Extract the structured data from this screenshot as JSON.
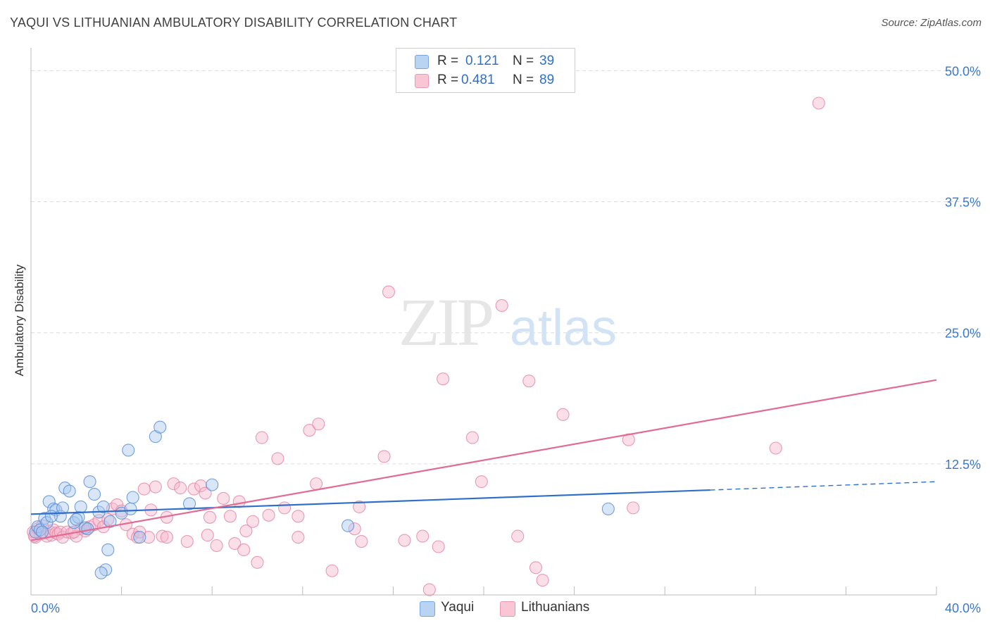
{
  "title": "YAQUI VS LITHUANIAN AMBULATORY DISABILITY CORRELATION CHART",
  "source": "Source: ZipAtlas.com",
  "watermark": {
    "zip": "ZIP",
    "atlas": "atlas"
  },
  "legend": {
    "r_label": "R =",
    "n_label": "N =",
    "yaqui": {
      "r": "0.121",
      "n": "39"
    },
    "lithuanians": {
      "r": "0.481",
      "n": "89"
    }
  },
  "colors": {
    "yaqui_fill": "#a9c8f0",
    "yaqui_stroke": "#5b8fd6",
    "yaqui_line": "#2f6fcc",
    "lith_fill": "#f7b8cc",
    "lith_stroke": "#e58aa8",
    "lith_line": "#e26b95",
    "tick_label": "#3b78c8",
    "grid": "#dcdcdc"
  },
  "chart_data": {
    "type": "scatter",
    "title": "YAQUI VS LITHUANIAN AMBULATORY DISABILITY CORRELATION CHART",
    "xlabel": "",
    "ylabel": "Ambulatory Disability",
    "xlim": [
      0,
      40
    ],
    "ylim": [
      0,
      51.5
    ],
    "x_tick_labels": [
      "0.0%",
      "40.0%"
    ],
    "y_ticks": [
      12.5,
      25.0,
      37.5,
      50.0
    ],
    "y_tick_labels": [
      "12.5%",
      "25.0%",
      "37.5%",
      "50.0%"
    ],
    "grid": true,
    "series": [
      {
        "name": "Yaqui",
        "trend": {
          "x0": 0,
          "y0": 7.7,
          "x1": 30,
          "y1": 10.0,
          "dashed_to": 40,
          "y_dashed_end": 10.8
        },
        "points": [
          [
            0.2,
            6.0
          ],
          [
            0.3,
            6.5
          ],
          [
            0.4,
            6.2
          ],
          [
            0.6,
            7.3
          ],
          [
            0.7,
            6.9
          ],
          [
            0.8,
            8.9
          ],
          [
            1.0,
            8.2
          ],
          [
            1.1,
            8.1
          ],
          [
            1.3,
            7.5
          ],
          [
            1.5,
            10.2
          ],
          [
            1.7,
            9.9
          ],
          [
            1.9,
            6.9
          ],
          [
            2.1,
            7.4
          ],
          [
            2.2,
            8.4
          ],
          [
            2.4,
            6.4
          ],
          [
            2.6,
            10.8
          ],
          [
            2.8,
            9.6
          ],
          [
            3.0,
            7.9
          ],
          [
            3.2,
            8.4
          ],
          [
            3.4,
            4.3
          ],
          [
            3.5,
            7.0
          ],
          [
            4.0,
            7.8
          ],
          [
            4.3,
            13.8
          ],
          [
            4.5,
            9.3
          ],
          [
            4.8,
            5.5
          ],
          [
            5.5,
            15.1
          ],
          [
            5.7,
            16.0
          ],
          [
            7.0,
            8.7
          ],
          [
            8.0,
            10.5
          ],
          [
            14.0,
            6.6
          ],
          [
            25.5,
            8.2
          ],
          [
            0.5,
            6.0
          ],
          [
            1.4,
            8.3
          ],
          [
            2.0,
            7.2
          ],
          [
            3.3,
            2.4
          ],
          [
            3.1,
            2.1
          ],
          [
            2.5,
            6.3
          ],
          [
            0.9,
            7.5
          ],
          [
            4.4,
            8.2
          ]
        ]
      },
      {
        "name": "Lithuanians",
        "trend": {
          "x0": 0,
          "y0": 5.2,
          "x1": 40,
          "y1": 20.5
        },
        "points": [
          [
            0.1,
            6.0
          ],
          [
            0.2,
            5.5
          ],
          [
            0.3,
            6.3
          ],
          [
            0.4,
            5.8
          ],
          [
            0.5,
            6.6
          ],
          [
            0.6,
            5.9
          ],
          [
            0.7,
            5.6
          ],
          [
            0.8,
            6.1
          ],
          [
            0.9,
            5.7
          ],
          [
            1.0,
            6.2
          ],
          [
            1.1,
            5.9
          ],
          [
            1.2,
            5.8
          ],
          [
            1.3,
            6.0
          ],
          [
            1.4,
            5.5
          ],
          [
            1.6,
            6.0
          ],
          [
            1.8,
            5.9
          ],
          [
            2.0,
            5.6
          ],
          [
            2.2,
            6.3
          ],
          [
            2.4,
            6.1
          ],
          [
            2.6,
            6.5
          ],
          [
            2.8,
            6.7
          ],
          [
            3.0,
            7.1
          ],
          [
            3.2,
            6.5
          ],
          [
            3.4,
            7.2
          ],
          [
            3.6,
            8.2
          ],
          [
            3.8,
            8.6
          ],
          [
            4.0,
            8.0
          ],
          [
            4.2,
            6.7
          ],
          [
            4.5,
            5.8
          ],
          [
            4.7,
            5.5
          ],
          [
            5.0,
            10.1
          ],
          [
            5.3,
            8.1
          ],
          [
            5.5,
            10.3
          ],
          [
            5.8,
            5.6
          ],
          [
            6.0,
            7.4
          ],
          [
            6.3,
            10.6
          ],
          [
            6.6,
            10.2
          ],
          [
            6.9,
            5.1
          ],
          [
            7.2,
            10.1
          ],
          [
            7.5,
            10.4
          ],
          [
            7.7,
            9.7
          ],
          [
            7.9,
            7.4
          ],
          [
            8.2,
            4.7
          ],
          [
            8.5,
            9.2
          ],
          [
            8.8,
            7.5
          ],
          [
            9.0,
            4.9
          ],
          [
            9.2,
            8.9
          ],
          [
            9.5,
            6.1
          ],
          [
            9.8,
            7.0
          ],
          [
            10.2,
            15.0
          ],
          [
            10.5,
            7.6
          ],
          [
            10.9,
            13.0
          ],
          [
            11.2,
            8.3
          ],
          [
            11.8,
            7.5
          ],
          [
            12.3,
            15.7
          ],
          [
            12.7,
            16.3
          ],
          [
            12.6,
            10.6
          ],
          [
            13.3,
            2.3
          ],
          [
            14.5,
            8.4
          ],
          [
            14.6,
            5.1
          ],
          [
            15.6,
            13.2
          ],
          [
            15.8,
            28.9
          ],
          [
            16.5,
            5.2
          ],
          [
            17.3,
            5.6
          ],
          [
            17.6,
            0.5
          ],
          [
            18.0,
            4.6
          ],
          [
            18.2,
            20.6
          ],
          [
            19.5,
            15.0
          ],
          [
            19.9,
            10.8
          ],
          [
            20.8,
            27.6
          ],
          [
            21.5,
            5.6
          ],
          [
            22.0,
            20.4
          ],
          [
            22.3,
            2.6
          ],
          [
            22.6,
            1.4
          ],
          [
            23.5,
            17.2
          ],
          [
            26.4,
            14.8
          ],
          [
            26.6,
            8.3
          ],
          [
            32.9,
            14.0
          ],
          [
            34.8,
            46.9
          ],
          [
            0.15,
            5.6
          ],
          [
            1.9,
            6.0
          ],
          [
            5.2,
            5.5
          ],
          [
            7.8,
            5.7
          ],
          [
            10.0,
            3.1
          ],
          [
            11.8,
            5.5
          ],
          [
            14.3,
            6.3
          ],
          [
            4.8,
            6.0
          ],
          [
            6.0,
            5.5
          ],
          [
            9.4,
            4.3
          ]
        ]
      }
    ]
  },
  "bottom_legend": {
    "yaqui": "Yaqui",
    "lithuanians": "Lithuanians"
  }
}
